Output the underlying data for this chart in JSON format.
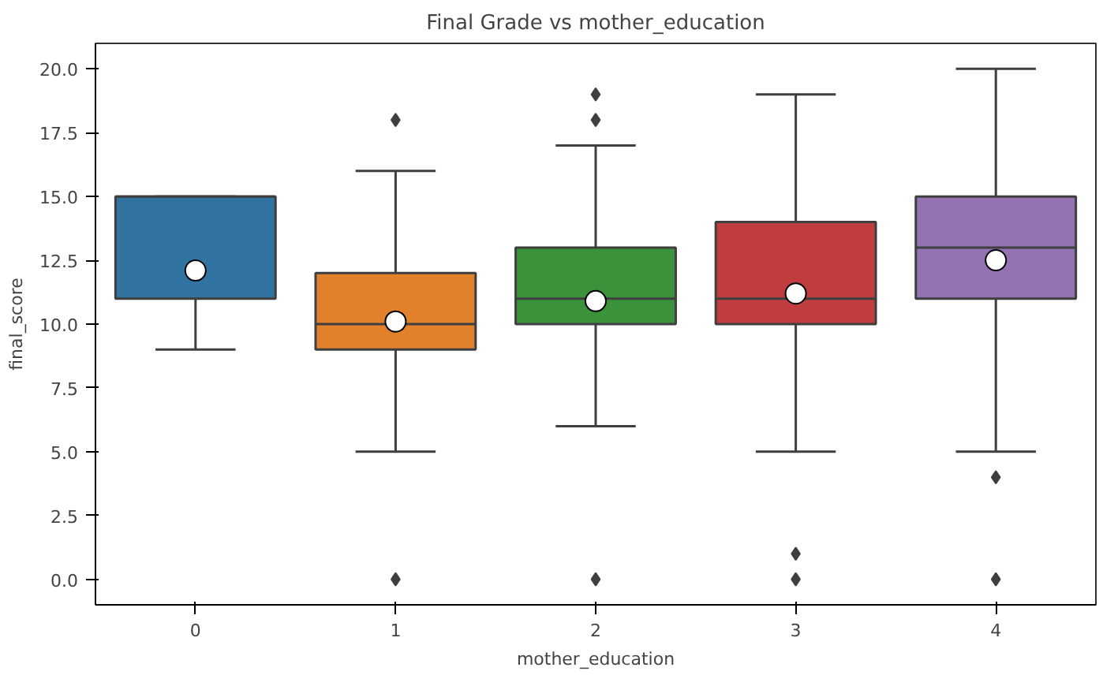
{
  "chart_data": {
    "type": "box",
    "title": "Final Grade vs mother_education",
    "xlabel": "mother_education",
    "ylabel": "final_score",
    "categories": [
      "0",
      "1",
      "2",
      "3",
      "4"
    ],
    "colors": [
      "#3274a1",
      "#e1812c",
      "#3a923a",
      "#c03d3e",
      "#9372b2"
    ],
    "boxes": [
      {
        "low": 9,
        "q1": 11,
        "median": 15,
        "q3": 15,
        "high": 15,
        "mean": 12.1
      },
      {
        "low": 5,
        "q1": 9,
        "median": 10,
        "q3": 12,
        "high": 16,
        "mean": 10.1,
        "outliers": [
          0,
          18
        ]
      },
      {
        "low": 6,
        "q1": 10,
        "median": 11,
        "q3": 13,
        "high": 17,
        "mean": 10.9,
        "outliers": [
          0,
          18,
          19
        ]
      },
      {
        "low": 5,
        "q1": 10,
        "median": 11,
        "q3": 14,
        "high": 19,
        "mean": 11.2,
        "outliers": [
          0,
          1
        ]
      },
      {
        "low": 5,
        "q1": 11,
        "median": 13,
        "q3": 15,
        "high": 20,
        "mean": 12.5,
        "outliers": [
          0,
          4
        ]
      }
    ],
    "ylim": [
      -1.0,
      21.0
    ],
    "yticks": [
      {
        "value": 0,
        "label": "0.0"
      },
      {
        "value": 2.5,
        "label": "2.5"
      },
      {
        "value": 5,
        "label": "5.0"
      },
      {
        "value": 7.5,
        "label": "7.5"
      },
      {
        "value": 10,
        "label": "10.0"
      },
      {
        "value": 12.5,
        "label": "12.5"
      },
      {
        "value": 15,
        "label": "15.0"
      },
      {
        "value": 17.5,
        "label": "17.5"
      },
      {
        "value": 20,
        "label": "20.0"
      }
    ],
    "marker": "diamond"
  }
}
